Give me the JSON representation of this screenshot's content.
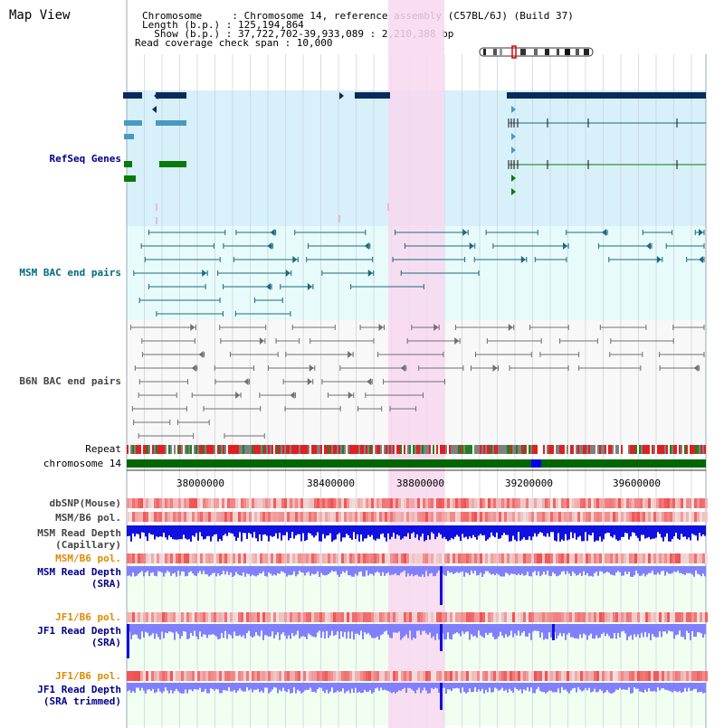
{
  "header": {
    "title": "Map View",
    "chromosome_line": "Chromosome     : Chromosome 14, reference assembly (C57BL/6J) (Build 37)",
    "length_line": "Length (b.p.) : 125,194,864",
    "show_line": "  Show (b.p.) : 37,722,702-39,933,089 : 2,210,388 bp",
    "coverage_line": "Read coverage check span : 10,000"
  },
  "tracks": {
    "refseq": "RefSeq Genes",
    "msm_bac": "MSM BAC end pairs",
    "b6n_bac": "B6N BAC end pairs",
    "repeat": "Repeat",
    "chromosome": "chromosome 14",
    "dbsnp": "dbSNP(Mouse)",
    "msm_b6_pol_1": "MSM/B6 pol.",
    "msm_depth_cap_1": "MSM Read Depth",
    "msm_depth_cap_2": "(Capillary)",
    "msm_b6_pol_2": "MSM/B6 pol.",
    "msm_depth_sra_1": "MSM Read Depth",
    "msm_depth_sra_2": "(SRA)",
    "jf1_b6_pol_1": "JF1/B6 pol.",
    "jf1_depth_sra_1": "JF1 Read Depth",
    "jf1_depth_sra_2": "(SRA)",
    "jf1_b6_pol_2": "JF1/B6 pol.",
    "jf1_depth_trim_1": "JF1 Read Depth",
    "jf1_depth_trim_2": "(SRA trimmed)"
  },
  "axis": {
    "ticks": [
      "38000000",
      "38400000",
      "38800000",
      "39200000",
      "39600000"
    ]
  },
  "colors": {
    "refseq_bg": "#d8f0fa",
    "msm_bg": "#e8fbfb",
    "b6n_bg": "#f8f8f8",
    "highlight": "#f8d8f0",
    "refseq_dark": "#0a2a5a",
    "refseq_mid": "#4a9ac0",
    "refseq_green": "#0a7a0a",
    "msm_feature": "#1a6a80",
    "b6n_feature": "#707070",
    "chrom_bar": "#006600",
    "chrom_marker": "#0000ee",
    "depth_blue": "#1010e0",
    "depth_light": "#8080ff",
    "label_teal": "#006a80",
    "label_blue": "#00008a",
    "label_orange": "#e08a00",
    "label_gray": "#444444"
  }
}
